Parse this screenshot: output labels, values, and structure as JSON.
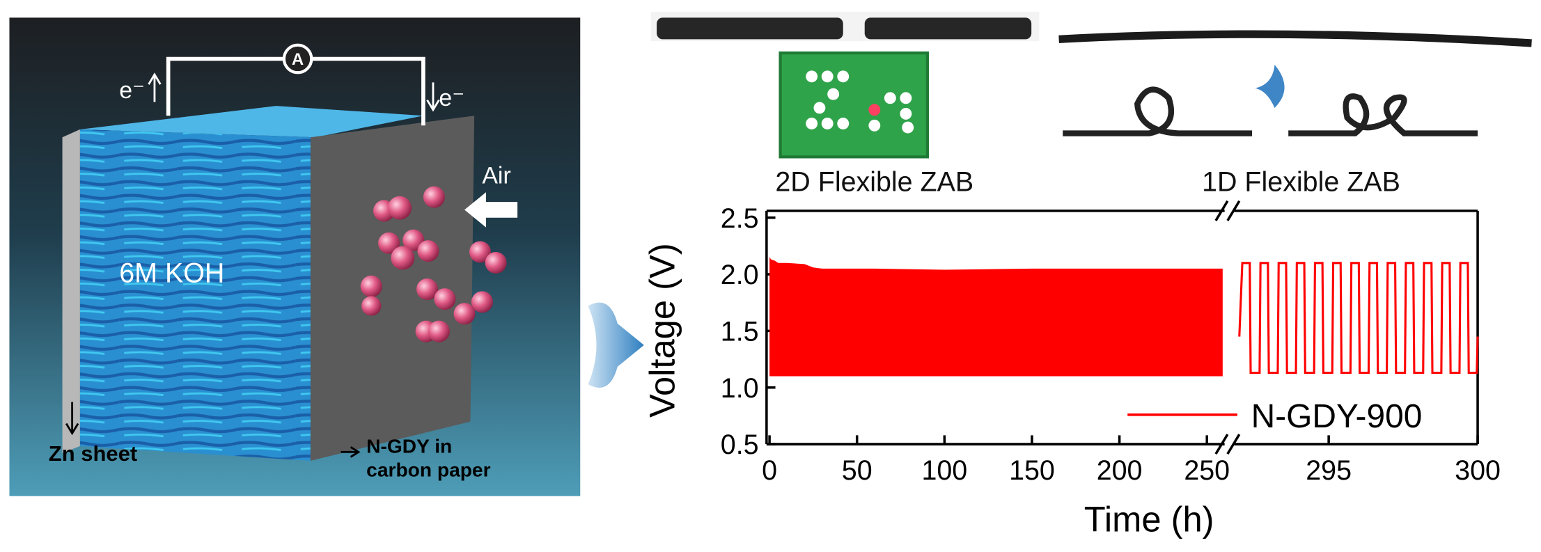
{
  "schematic": {
    "ammeter": "A",
    "electron_left": "e⁻",
    "electron_right": "e⁻",
    "air": "Air",
    "electrolyte": "6M KOH",
    "anode": "Zn sheet",
    "cathode_1": "N-GDY in",
    "cathode_2": "carbon paper"
  },
  "photos": {
    "left": "2D Flexible ZAB",
    "right": "1D Flexible ZAB"
  },
  "chart_data": {
    "type": "line",
    "xlabel": "Time (h)",
    "ylabel": "Voltage (V)",
    "xlim": [
      0,
      300
    ],
    "xbreak": [
      259,
      292
    ],
    "ylim": [
      0.5,
      2.5
    ],
    "xticks": [
      0,
      50,
      100,
      150,
      200,
      250,
      295,
      300
    ],
    "yticks": [
      0.5,
      {
        "value": 1,
        "label": "1.0"
      },
      1.5,
      {
        "value": 2,
        "label": "2.0"
      },
      2.5
    ],
    "legend": "lower right",
    "band": {
      "x": [
        0,
        1,
        3,
        5,
        10,
        20,
        25,
        30,
        60,
        100,
        150,
        200,
        259
      ],
      "upper": [
        2.15,
        2.13,
        2.12,
        2.1,
        2.1,
        2.09,
        2.06,
        2.05,
        2.05,
        2.04,
        2.05,
        2.05,
        2.05
      ],
      "lower": [
        1.1,
        1.1,
        1.1,
        1.1,
        1.1,
        1.1,
        1.1,
        1.1,
        1.1,
        1.1,
        1.1,
        1.1,
        1.1
      ]
    },
    "series": [
      {
        "name": "N-GDY-900",
        "color": "#ff0000",
        "x": [
          292.0,
          292.1,
          292.35,
          292.38,
          292.68,
          292.71,
          292.96,
          292.99,
          293.29,
          293.32,
          293.57,
          293.6,
          293.9,
          293.93,
          294.18,
          294.21,
          294.51,
          294.54,
          294.79,
          294.82,
          295.12,
          295.15,
          295.4,
          295.43,
          295.73,
          295.76,
          296.01,
          296.04,
          296.34,
          296.37,
          296.62,
          296.65,
          296.95,
          296.98,
          297.23,
          297.26,
          297.56,
          297.59,
          297.84,
          297.87,
          298.17,
          298.2,
          298.45,
          298.48,
          298.78,
          298.81,
          299.06,
          299.09,
          299.39,
          299.42,
          299.67,
          299.7,
          299.97,
          300.0
        ],
        "values": [
          1.45,
          2.1,
          2.1,
          1.13,
          1.13,
          2.1,
          2.1,
          1.13,
          1.13,
          2.1,
          2.1,
          1.13,
          1.13,
          2.1,
          2.1,
          1.13,
          1.13,
          2.1,
          2.1,
          1.13,
          1.13,
          2.1,
          2.1,
          1.13,
          1.13,
          2.1,
          2.1,
          1.13,
          1.13,
          2.1,
          2.1,
          1.13,
          1.13,
          2.1,
          2.1,
          1.13,
          1.13,
          2.1,
          2.1,
          1.13,
          1.13,
          2.1,
          2.1,
          1.13,
          1.13,
          2.1,
          2.1,
          1.13,
          1.13,
          2.1,
          2.1,
          1.13,
          1.13,
          1.45
        ]
      }
    ]
  }
}
